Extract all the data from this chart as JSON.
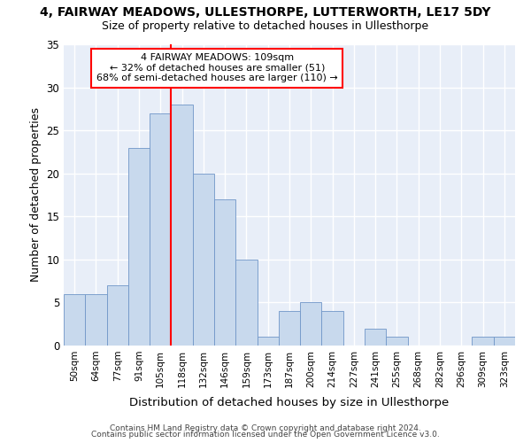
{
  "title": "4, FAIRWAY MEADOWS, ULLESTHORPE, LUTTERWORTH, LE17 5DY",
  "subtitle": "Size of property relative to detached houses in Ullesthorpe",
  "xlabel": "Distribution of detached houses by size in Ullesthorpe",
  "ylabel": "Number of detached properties",
  "bar_color": "#c8d9ed",
  "bar_edge_color": "#7096c8",
  "categories": [
    "50sqm",
    "64sqm",
    "77sqm",
    "91sqm",
    "105sqm",
    "118sqm",
    "132sqm",
    "146sqm",
    "159sqm",
    "173sqm",
    "187sqm",
    "200sqm",
    "214sqm",
    "227sqm",
    "241sqm",
    "255sqm",
    "268sqm",
    "282sqm",
    "296sqm",
    "309sqm",
    "323sqm"
  ],
  "values": [
    6,
    6,
    7,
    23,
    27,
    28,
    20,
    17,
    10,
    1,
    4,
    5,
    4,
    0,
    2,
    1,
    0,
    0,
    0,
    1,
    1
  ],
  "ylim": [
    0,
    35
  ],
  "yticks": [
    0,
    5,
    10,
    15,
    20,
    25,
    30,
    35
  ],
  "property_label": "4 FAIRWAY MEADOWS: 109sqm",
  "annotation_line1": "← 32% of detached houses are smaller (51)",
  "annotation_line2": "68% of semi-detached houses are larger (110) →",
  "vline_bin_index": 4,
  "fig_bg": "#ffffff",
  "ax_bg": "#e8eef8",
  "grid_color": "#ffffff",
  "footer1": "Contains HM Land Registry data © Crown copyright and database right 2024.",
  "footer2": "Contains public sector information licensed under the Open Government Licence v3.0."
}
